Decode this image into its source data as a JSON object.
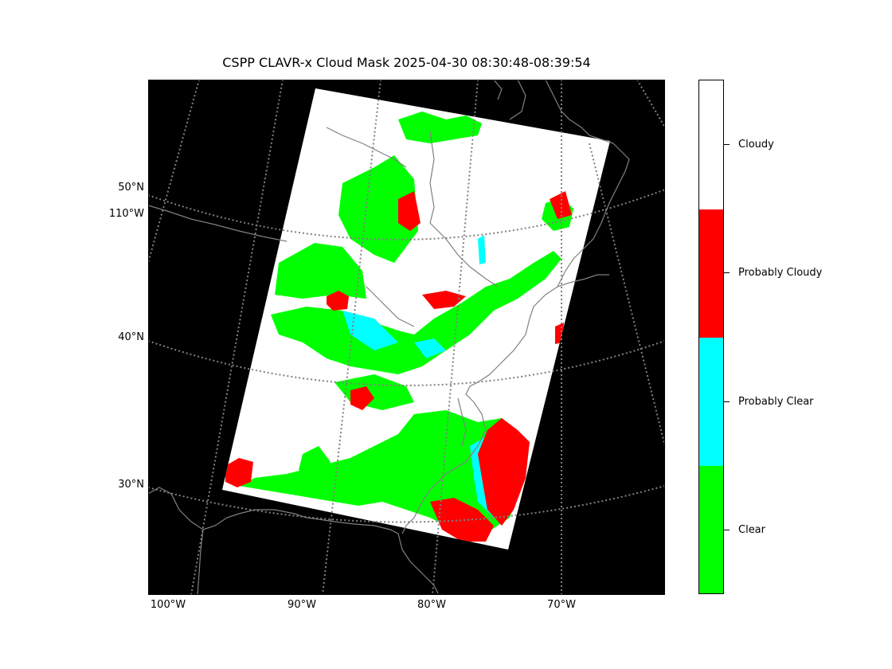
{
  "title": "CSPP CLAVR-x Cloud Mask 2025-04-30 08:30:48-08:39:54",
  "map": {
    "background": "#000000",
    "graticule_color": "#808080",
    "coastline_color": "#808080",
    "lat_labels": [
      "50°N",
      "110°W",
      "40°N",
      "30°N"
    ],
    "lon_labels": [
      "100°W",
      "90°W",
      "80°W",
      "70°W"
    ]
  },
  "legend": {
    "classes": [
      {
        "label": "Cloudy",
        "color": "#ffffff"
      },
      {
        "label": "Probably Cloudy",
        "color": "#ff0000"
      },
      {
        "label": "Probably Clear",
        "color": "#00ffff"
      },
      {
        "label": "Clear",
        "color": "#00ff00"
      }
    ]
  }
}
